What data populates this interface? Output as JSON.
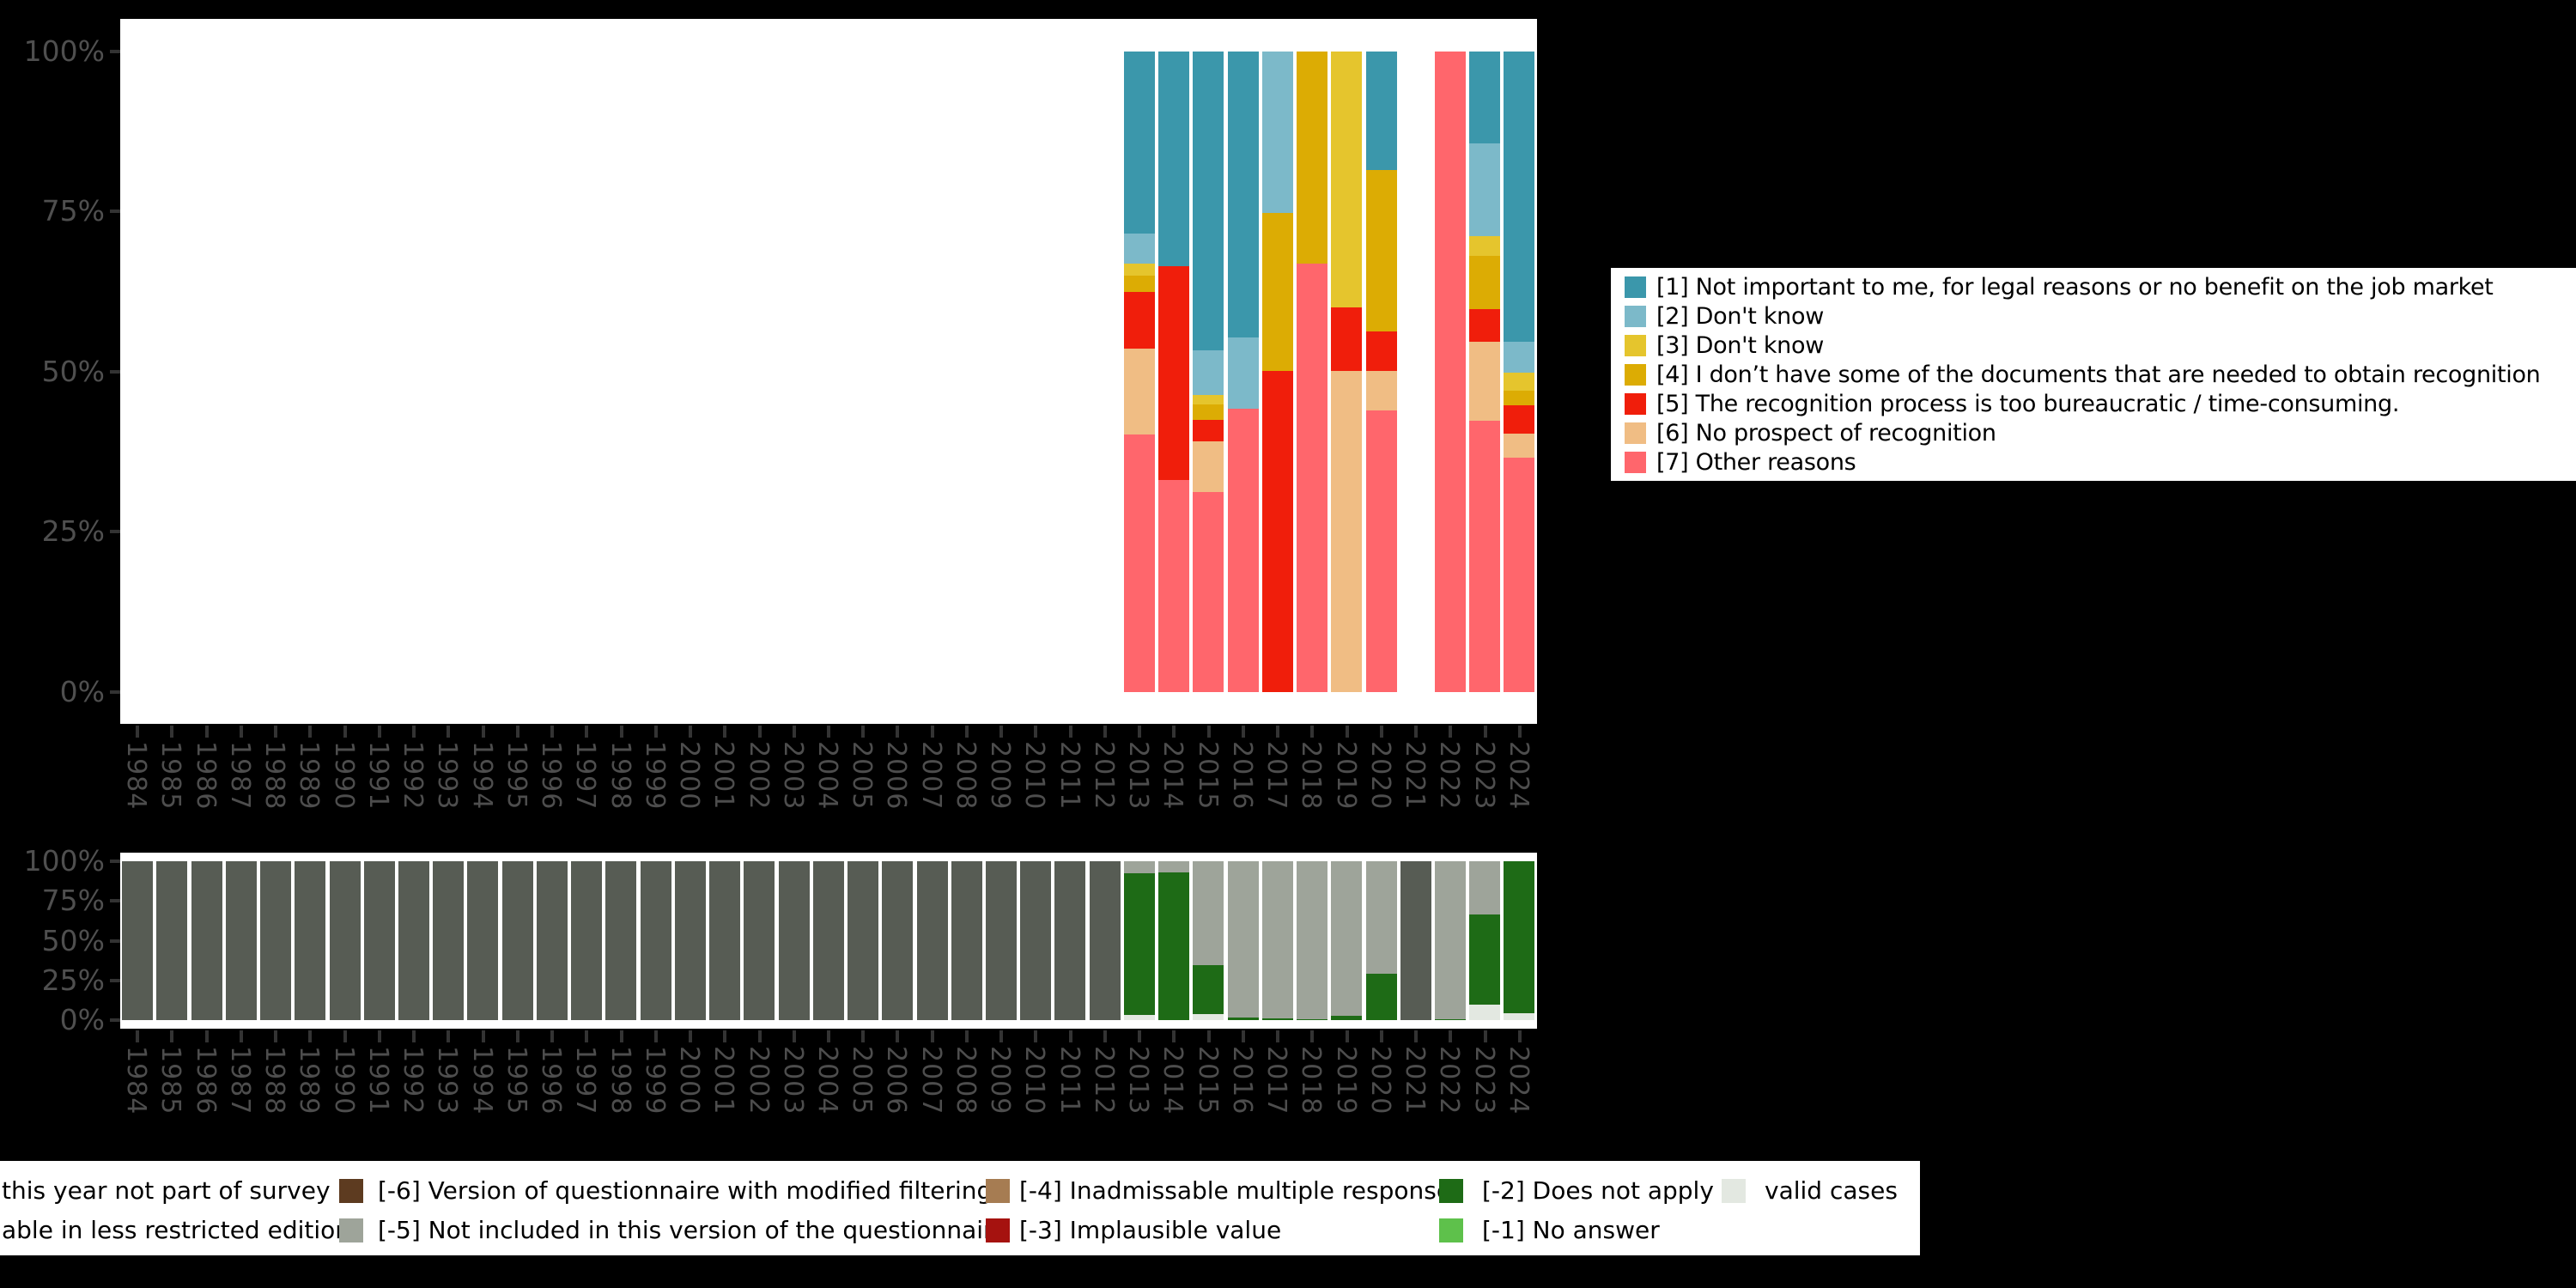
{
  "background_color": "#000000",
  "axes": {
    "y_tick_labels": [
      "100%",
      "75%",
      "50%",
      "25%",
      "0%"
    ],
    "years": [
      "1984",
      "1985",
      "1986",
      "1987",
      "1988",
      "1989",
      "1990",
      "1991",
      "1992",
      "1993",
      "1994",
      "1995",
      "1996",
      "1997",
      "1998",
      "1999",
      "2000",
      "2001",
      "2002",
      "2003",
      "2004",
      "2005",
      "2006",
      "2007",
      "2008",
      "2009",
      "2010",
      "2011",
      "2012",
      "2013",
      "2014",
      "2015",
      "2016",
      "2017",
      "2018",
      "2019",
      "2020",
      "2021",
      "2022",
      "2023",
      "2024"
    ],
    "axis_text_color": "#4d4d4d",
    "tick_color": "#333333"
  },
  "legend_main": {
    "items": [
      {
        "code": "1",
        "label": "[1] Not important to me, for legal reasons or no benefit on the job market",
        "color": "#3b97ab"
      },
      {
        "code": "2",
        "label": "[2] Don't know",
        "color": "#7cb9c9"
      },
      {
        "code": "3",
        "label": "[3] Don't know",
        "color": "#e5c52d"
      },
      {
        "code": "4",
        "label": "[4] I don’t have some of the documents that are needed to obtain recognition",
        "color": "#dcac04"
      },
      {
        "code": "5",
        "label": "[5] The recognition process is too bureaucratic / time-consuming.",
        "color": "#f01e0b"
      },
      {
        "code": "6",
        "label": "[6] No prospect of recognition",
        "color": "#f0bd84"
      },
      {
        "code": "7",
        "label": "[7] Other reasons",
        "color": "#ff666c"
      }
    ]
  },
  "legend_missing": {
    "rows": [
      {
        "items": [
          {
            "label": "this year not part of survey",
            "color": "#575c54",
            "swatch_visible": false
          },
          {
            "label": "[-6] Version of questionnaire with modified filtering",
            "color": "#5d3b20",
            "swatch_visible": true
          },
          {
            "label": "[-4] Inadmissable multiple response",
            "color": "#a67c52",
            "swatch_visible": true
          },
          {
            "label": "[-2] Does not apply",
            "color": "#1e6b16",
            "swatch_visible": true
          },
          {
            "label": "valid cases",
            "color": "#e3e8e1",
            "swatch_visible": true
          }
        ]
      },
      {
        "items": [
          {
            "label": "able in less restricted edition",
            "color": "#9ea49a",
            "swatch_visible": false
          },
          {
            "label": "[-5] Not included in this version of the questionnaire",
            "color": "#9ea49a",
            "swatch_visible": true
          },
          {
            "label": "[-3] Implausible value",
            "color": "#a5120f",
            "swatch_visible": true
          },
          {
            "label": "[-1] No answer",
            "color": "#5ec14b",
            "swatch_visible": true
          }
        ]
      }
    ]
  },
  "chart_data": [
    {
      "type": "bar",
      "id": "reasons-by-year",
      "title": "",
      "ylabel": "",
      "ylim": [
        0,
        100
      ],
      "grid": false,
      "legend_position": "right",
      "years": [
        "1984",
        "1985",
        "1986",
        "1987",
        "1988",
        "1989",
        "1990",
        "1991",
        "1992",
        "1993",
        "1994",
        "1995",
        "1996",
        "1997",
        "1998",
        "1999",
        "2000",
        "2001",
        "2002",
        "2003",
        "2004",
        "2005",
        "2006",
        "2007",
        "2008",
        "2009",
        "2010",
        "2011",
        "2012",
        "2013",
        "2014",
        "2015",
        "2016",
        "2017",
        "2018",
        "2019",
        "2020",
        "2021",
        "2022",
        "2023",
        "2024"
      ],
      "stack_order": [
        "7",
        "6",
        "5",
        "4",
        "3",
        "2",
        "1"
      ],
      "colors": {
        "1": "#3b97ab",
        "2": "#7cb9c9",
        "3": "#e5c52d",
        "4": "#dcac04",
        "5": "#f01e0b",
        "6": "#f0bd84",
        "7": "#ff666c"
      },
      "series": [
        {
          "code": "1",
          "name": "[1] Not important to me, for legal reasons or no benefit on the job market"
        },
        {
          "code": "2",
          "name": "[2] Don't know"
        },
        {
          "code": "3",
          "name": "[3] Don't know"
        },
        {
          "code": "4",
          "name": "[4] I don’t have some of the documents that are needed to obtain recognition"
        },
        {
          "code": "5",
          "name": "[5] The recognition process is too bureaucratic / time-consuming."
        },
        {
          "code": "6",
          "name": "[6] No prospect of recognition"
        },
        {
          "code": "7",
          "name": "[7] Other reasons"
        }
      ],
      "values_by_year": {
        "2013": {
          "1": 28.5,
          "2": 4.6,
          "3": 1.9,
          "4": 2.6,
          "5": 8.8,
          "6": 13.4,
          "7": 40.2
        },
        "2014": {
          "1": 33.5,
          "5": 33.4,
          "7": 33.1
        },
        "2015": {
          "1": 46.7,
          "2": 7.0,
          "3": 1.4,
          "4": 2.4,
          "5": 3.4,
          "6": 7.9,
          "7": 31.2
        },
        "2016": {
          "1": 44.6,
          "2": 11.2,
          "7": 44.2
        },
        "2017": {
          "2": 25.2,
          "4": 24.7,
          "5": 50.1
        },
        "2018": {
          "4": 33.1,
          "7": 66.9
        },
        "2019": {
          "3": 40.0,
          "5": 9.9,
          "6": 50.1
        },
        "2020": {
          "1": 18.6,
          "4": 25.1,
          "5": 6.2,
          "6": 6.2,
          "7": 43.9
        },
        "2022": {
          "7": 100.0
        },
        "2023": {
          "1": 14.4,
          "2": 14.5,
          "3": 3.1,
          "4": 8.2,
          "5": 5.2,
          "6": 12.2,
          "7": 42.4
        },
        "2024": {
          "1": 45.3,
          "2": 4.9,
          "3": 2.8,
          "4": 2.2,
          "5": 4.5,
          "6": 3.7,
          "7": 36.6
        }
      }
    },
    {
      "type": "bar",
      "id": "missings-by-year",
      "title": "",
      "ylabel": "",
      "ylim": [
        0,
        100
      ],
      "grid": false,
      "legend_position": "bottom",
      "years": [
        "1984",
        "1985",
        "1986",
        "1987",
        "1988",
        "1989",
        "1990",
        "1991",
        "1992",
        "1993",
        "1994",
        "1995",
        "1996",
        "1997",
        "1998",
        "1999",
        "2000",
        "2001",
        "2002",
        "2003",
        "2004",
        "2005",
        "2006",
        "2007",
        "2008",
        "2009",
        "2010",
        "2011",
        "2012",
        "2013",
        "2014",
        "2015",
        "2016",
        "2017",
        "2018",
        "2019",
        "2020",
        "2021",
        "2022",
        "2023",
        "2024"
      ],
      "stack_order": [
        "valid",
        "-1",
        "-2",
        "-3",
        "-4",
        "-5",
        "-6",
        "not_part"
      ],
      "colors": {
        "valid": "#e3e8e1",
        "-1": "#5ec14b",
        "-2": "#1e6b16",
        "-3": "#a5120f",
        "-4": "#a67c52",
        "-5": "#9ea49a",
        "-6": "#5d3b20",
        "not_part": "#575c54"
      },
      "series": [
        {
          "code": "valid",
          "name": "valid cases"
        },
        {
          "code": "-1",
          "name": "[-1] No answer"
        },
        {
          "code": "-2",
          "name": "[-2] Does not apply"
        },
        {
          "code": "-3",
          "name": "[-3] Implausible value"
        },
        {
          "code": "-4",
          "name": "[-4] Inadmissable multiple response"
        },
        {
          "code": "-5",
          "name": "[-5] Not included in this version of the questionnaire"
        },
        {
          "code": "-6",
          "name": "[-6] Version of questionnaire with modified filtering"
        },
        {
          "code": "not_part",
          "name": "this year not part of survey"
        }
      ],
      "values_by_year": {
        "1984": {
          "not_part": 100
        },
        "1985": {
          "not_part": 100
        },
        "1986": {
          "not_part": 100
        },
        "1987": {
          "not_part": 100
        },
        "1988": {
          "not_part": 100
        },
        "1989": {
          "not_part": 100
        },
        "1990": {
          "not_part": 100
        },
        "1991": {
          "not_part": 100
        },
        "1992": {
          "not_part": 100
        },
        "1993": {
          "not_part": 100
        },
        "1994": {
          "not_part": 100
        },
        "1995": {
          "not_part": 100
        },
        "1996": {
          "not_part": 100
        },
        "1997": {
          "not_part": 100
        },
        "1998": {
          "not_part": 100
        },
        "1999": {
          "not_part": 100
        },
        "2000": {
          "not_part": 100
        },
        "2001": {
          "not_part": 100
        },
        "2002": {
          "not_part": 100
        },
        "2003": {
          "not_part": 100
        },
        "2004": {
          "not_part": 100
        },
        "2005": {
          "not_part": 100
        },
        "2006": {
          "not_part": 100
        },
        "2007": {
          "not_part": 100
        },
        "2008": {
          "not_part": 100
        },
        "2009": {
          "not_part": 100
        },
        "2010": {
          "not_part": 100
        },
        "2011": {
          "not_part": 100
        },
        "2012": {
          "not_part": 100
        },
        "2013": {
          "valid": 3.4,
          "-2": 88.8,
          "-5": 7.8
        },
        "2014": {
          "-2": 93.0,
          "-5": 7.0
        },
        "2015": {
          "valid": 4.0,
          "-2": 30.6,
          "-5": 65.4
        },
        "2016": {
          "-2": 1.6,
          "-5": 98.4
        },
        "2017": {
          "-2": 1.1,
          "-5": 98.9
        },
        "2018": {
          "-2": 0.4,
          "-5": 99.6
        },
        "2019": {
          "-2": 2.9,
          "-5": 97.1
        },
        "2020": {
          "-2": 29.2,
          "-5": 70.8
        },
        "2021": {
          "not_part": 100
        },
        "2022": {
          "-2": 0.5,
          "-5": 99.5
        },
        "2023": {
          "valid": 9.7,
          "-2": 56.8,
          "-5": 33.5
        },
        "2024": {
          "valid": 4.3,
          "-2": 95.7
        }
      }
    }
  ]
}
